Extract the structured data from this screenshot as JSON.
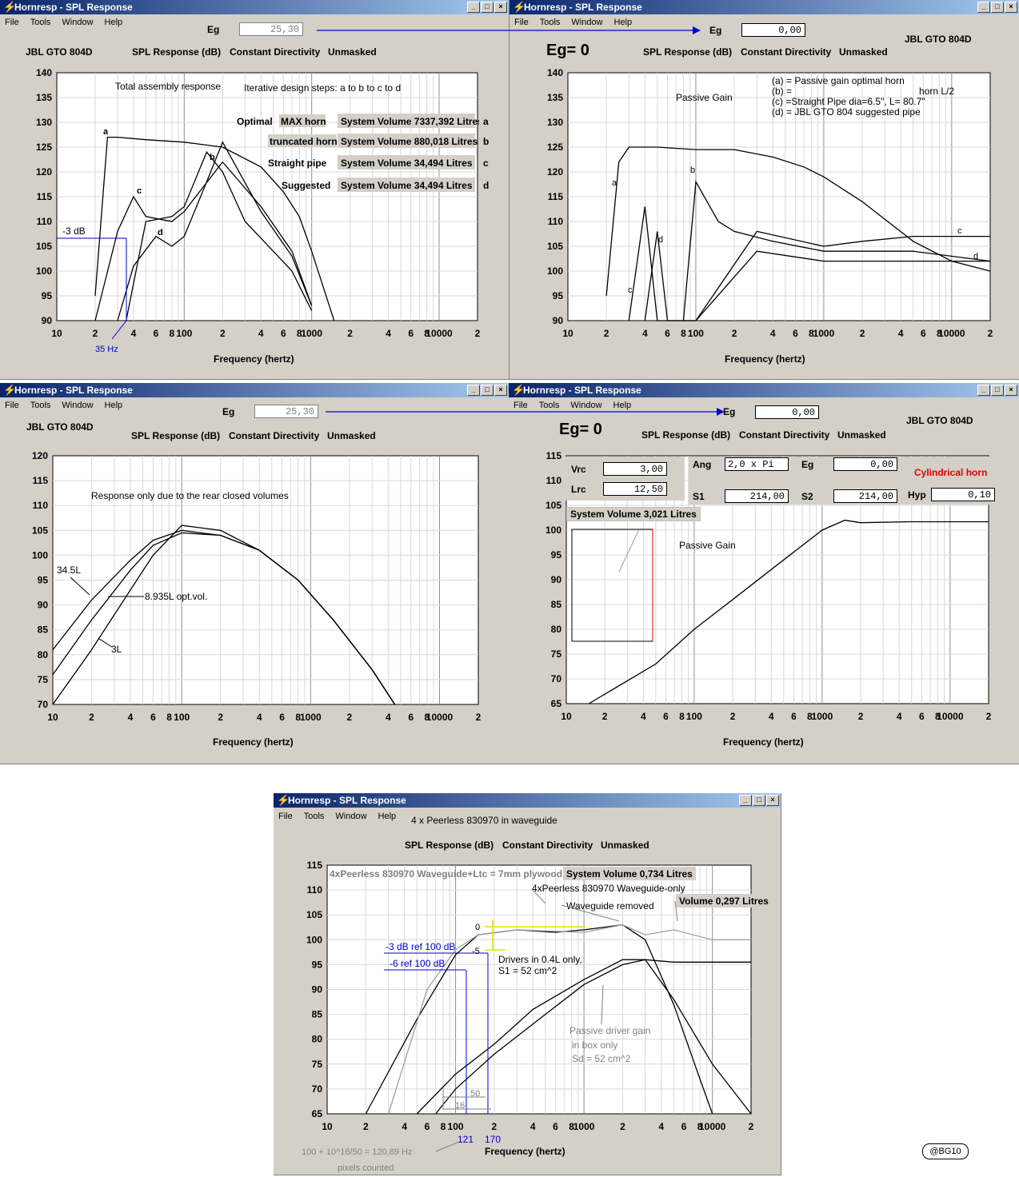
{
  "app": {
    "title": "Hornresp - SPL Response",
    "menu": [
      "File",
      "Tools",
      "Window",
      "Help"
    ]
  },
  "common": {
    "spl_label": "SPL Response (dB)",
    "directivity": "Constant Directivity",
    "mask": "Unmasked",
    "xlabel": "Frequency (hertz)",
    "model": "JBL GTO 804D",
    "eg_label": "Eg",
    "eg0_label": "Eg= 0"
  },
  "win1": {
    "eg_value": "25,30",
    "chart_data": {
      "type": "line",
      "title": "Total assembly response",
      "subtitle": "Iterative design steps: a to b to c to d",
      "ylim": [
        90,
        140
      ],
      "xlim": [
        10,
        20000
      ],
      "xscale": "log",
      "yticks": [
        "140",
        "135",
        "130",
        "125",
        "120",
        "115",
        "110",
        "105",
        "100",
        "95",
        "90"
      ],
      "xticks": [
        "10",
        "2",
        "4",
        "6",
        "8",
        "100",
        "2",
        "4",
        "6",
        "8",
        "1000",
        "2",
        "4",
        "6",
        "8",
        "10000",
        "2"
      ],
      "series": [
        {
          "name": "a",
          "x": [
            20,
            25,
            30,
            50,
            100,
            200,
            400,
            600,
            800,
            1000,
            1500
          ],
          "values": [
            95,
            127,
            127,
            126.5,
            126,
            125,
            121,
            116,
            111,
            104,
            90
          ]
        },
        {
          "name": "b",
          "x": [
            35,
            50,
            80,
            100,
            150,
            200,
            300,
            500,
            700,
            1000
          ],
          "values": [
            90,
            110,
            111,
            113,
            124,
            120,
            110,
            104,
            100,
            92
          ]
        },
        {
          "name": "c",
          "x": [
            20,
            30,
            40,
            50,
            80,
            100,
            200,
            400,
            700,
            1000
          ],
          "values": [
            90,
            108,
            115,
            111,
            110,
            112,
            122,
            113,
            104,
            93
          ]
        },
        {
          "name": "d",
          "x": [
            30,
            40,
            60,
            80,
            100,
            150,
            200,
            400,
            700,
            1000
          ],
          "values": [
            90,
            101,
            107,
            105,
            107,
            118,
            126,
            112,
            103,
            93
          ]
        }
      ],
      "annotations": [
        "-3 dB",
        "35 Hz",
        "a",
        "b",
        "c",
        "d"
      ]
    },
    "legend": [
      {
        "prefix": "Optimal",
        "box": "MAX horn",
        "volume": "System Volume 7337,392 Litres",
        "tag": "a"
      },
      {
        "prefix": "",
        "box": "truncated horn",
        "volume": "System Volume 880,018 Litres",
        "tag": "b"
      },
      {
        "prefix": "Straight pipe",
        "box": "",
        "volume": "System Volume 34,494 Litres",
        "tag": "c"
      },
      {
        "prefix": "Suggested",
        "box": "",
        "volume": "System Volume 34,494 Litres",
        "tag": "d"
      }
    ]
  },
  "win2": {
    "eg_value": "0,00",
    "chart_data": {
      "type": "line",
      "title": "Passive Gain",
      "ylim": [
        90,
        140
      ],
      "xlim": [
        10,
        20000
      ],
      "xscale": "log",
      "yticks": [
        "140",
        "135",
        "130",
        "125",
        "120",
        "115",
        "110",
        "105",
        "100",
        "95",
        "90"
      ],
      "xticks": [
        "10",
        "2",
        "4",
        "6",
        "8",
        "100",
        "2",
        "4",
        "6",
        "8",
        "1000",
        "2",
        "4",
        "6",
        "8",
        "10000",
        "2"
      ],
      "series": [
        {
          "name": "a",
          "x": [
            20,
            25,
            30,
            50,
            100,
            200,
            400,
            700,
            1000,
            2000,
            5000,
            10000,
            20000
          ],
          "values": [
            95,
            122,
            125,
            125,
            124.5,
            124.5,
            123,
            121,
            119,
            114,
            106,
            102,
            100
          ]
        },
        {
          "name": "b",
          "x": [
            80,
            100,
            150,
            200,
            400,
            1000,
            2000,
            5000,
            20000
          ],
          "values": [
            90,
            118,
            110,
            108,
            106,
            104,
            104,
            104,
            102
          ]
        },
        {
          "name": "c",
          "x": [
            30,
            40,
            50,
            100,
            300,
            1000,
            2000,
            5000,
            20000
          ],
          "values": [
            90,
            113,
            90,
            90,
            108,
            105,
            106,
            107,
            107
          ]
        },
        {
          "name": "d",
          "x": [
            40,
            50,
            60,
            100,
            300,
            1000,
            2000,
            5000,
            20000
          ],
          "values": [
            90,
            108,
            90,
            90,
            104,
            102,
            102,
            102,
            102
          ]
        }
      ]
    },
    "legend": [
      "(a) = Passive gain optimal horn",
      "(b) =",
      "horn L/2",
      "(c) =Straight Pipe dia=6.5\", L=  80.7\"",
      "(d) = JBL GTO 804 suggested pipe"
    ]
  },
  "win3": {
    "eg_value": "25,30",
    "chart_data": {
      "type": "line",
      "title": "Response only due to the rear closed volumes",
      "ylim": [
        70,
        120
      ],
      "xlim": [
        10,
        20000
      ],
      "xscale": "log",
      "yticks": [
        "120",
        "115",
        "110",
        "105",
        "100",
        "95",
        "90",
        "85",
        "80",
        "75",
        "70"
      ],
      "xticks": [
        "10",
        "2",
        "4",
        "6",
        "8",
        "100",
        "2",
        "4",
        "6",
        "8",
        "1000",
        "2",
        "4",
        "6",
        "8",
        "10000",
        "2"
      ],
      "series": [
        {
          "name": "34.5L",
          "x": [
            10,
            20,
            40,
            60,
            100,
            200,
            400,
            800,
            1500,
            3000,
            4500
          ],
          "values": [
            81,
            91,
            99,
            103,
            105,
            104,
            101,
            95,
            87,
            77,
            70
          ]
        },
        {
          "name": "8.935L opt.vol.",
          "x": [
            10,
            20,
            40,
            60,
            100,
            200,
            400,
            800,
            1500,
            3000,
            4500
          ],
          "values": [
            76,
            87,
            97,
            102,
            104.5,
            104,
            101,
            95,
            87,
            77,
            70
          ]
        },
        {
          "name": "3L",
          "x": [
            10,
            20,
            40,
            60,
            100,
            200,
            400,
            800,
            1500,
            3000,
            4500
          ],
          "values": [
            70,
            81,
            93,
            100,
            106,
            105,
            101,
            95,
            87,
            77,
            70
          ]
        }
      ]
    }
  },
  "win4": {
    "eg_value": "0,00",
    "params": {
      "vrc_label": "Vrc",
      "vrc": "3,00",
      "lrc_label": "Lrc",
      "lrc": "12,50",
      "ang_label": "Ang",
      "ang": "2,0 x Pi",
      "eg_label": "Eg",
      "eg": "0,00",
      "s1_label": "S1",
      "s1": "214,00",
      "s2_label": "S2",
      "s2": "214,00",
      "hyp_label": "Hyp",
      "hyp": "0,10",
      "horn_type": "Cylindrical horn",
      "system_volume": "System Volume 3,021 Litres"
    },
    "chart_data": {
      "type": "line",
      "title": "Passive Gain",
      "ylim": [
        65,
        115
      ],
      "xlim": [
        10,
        20000
      ],
      "xscale": "log",
      "yticks": [
        "115",
        "110",
        "105",
        "100",
        "95",
        "90",
        "85",
        "80",
        "75",
        "70",
        "65"
      ],
      "xticks": [
        "10",
        "2",
        "4",
        "6",
        "8",
        "100",
        "2",
        "4",
        "6",
        "8",
        "1000",
        "2",
        "4",
        "6",
        "8",
        "10000",
        "2"
      ],
      "series": [
        {
          "name": "Passive Gain",
          "x": [
            15,
            50,
            100,
            200,
            500,
            1000,
            1500,
            2000,
            5000,
            20000
          ],
          "values": [
            65,
            73,
            80,
            86,
            94,
            100,
            102,
            101.5,
            101.7,
            101.7
          ]
        }
      ]
    }
  },
  "win5": {
    "subtitle": "4 x Peerless 830970 in waveguide",
    "signature": "@BG10",
    "chart_data": {
      "type": "line",
      "ylim": [
        65,
        115
      ],
      "xlim": [
        10,
        20000
      ],
      "xscale": "log",
      "yticks": [
        "115",
        "110",
        "105",
        "100",
        "95",
        "90",
        "85",
        "80",
        "75",
        "70",
        "65"
      ],
      "xticks": [
        "10",
        "2",
        "4",
        "6",
        "8",
        "100",
        "2",
        "4",
        "6",
        "8",
        "1000",
        "2",
        "4",
        "6",
        "8",
        "10000",
        "2"
      ],
      "series": [
        {
          "name": "4xPeerless 830970 Waveguide+Ltc = 7mm plywood",
          "x": [
            20,
            50,
            100,
            150,
            300,
            600,
            1000,
            2000,
            3000,
            5000,
            8000,
            10000
          ],
          "values": [
            65,
            84,
            97,
            101,
            102,
            101.5,
            102,
            103,
            100,
            87,
            72,
            65
          ]
        },
        {
          "name": "4xPeerless 830970 Waveguide-only",
          "x": [
            30,
            60,
            100,
            150,
            300,
            1000,
            2000,
            3000,
            5000,
            10000,
            20000
          ],
          "values": [
            65,
            90,
            98,
            101,
            102,
            101.5,
            103,
            101,
            102,
            100,
            100
          ]
        },
        {
          "name": "Drivers in 0.4L only, S1 = 52 cm^2",
          "x": [
            50,
            100,
            200,
            400,
            1000,
            2000,
            3000,
            5000,
            20000
          ],
          "values": [
            65,
            73,
            79,
            86,
            92,
            96,
            96,
            95.5,
            95.5
          ]
        },
        {
          "name": "Passive driver gain in box only Sd = 52 cm^2",
          "x": [
            70,
            100,
            200,
            500,
            1000,
            2000,
            3000,
            5000,
            10000,
            20000
          ],
          "values": [
            65,
            70,
            77,
            85,
            91,
            95,
            96,
            88,
            75,
            65
          ]
        }
      ]
    },
    "labels": {
      "sysvol": "System Volume 0,734 Litres",
      "wg_only": "4xPeerless 830970 Waveguide-only",
      "wg_removed": "Waveguide removed",
      "vol2": "Volume 0,297 Litres",
      "m3db": "-3 dB ref 100 dB",
      "m6db": "-6 ref 100 dB",
      "drivers1": "Drivers in 0.4L only,",
      "drivers2": "S1 = 52 cm^2",
      "pg1": "Passive driver gain",
      "pg2": "in box only",
      "pg3": "Sd = 52 cm^2",
      "zero": "0",
      "m5": "-5",
      "n50": "50",
      "n16": "16",
      "f121": "121",
      "f170": "170",
      "calc": "100 + 10^16/50 = 120,89 Hz",
      "pix": "pixels counted"
    }
  }
}
